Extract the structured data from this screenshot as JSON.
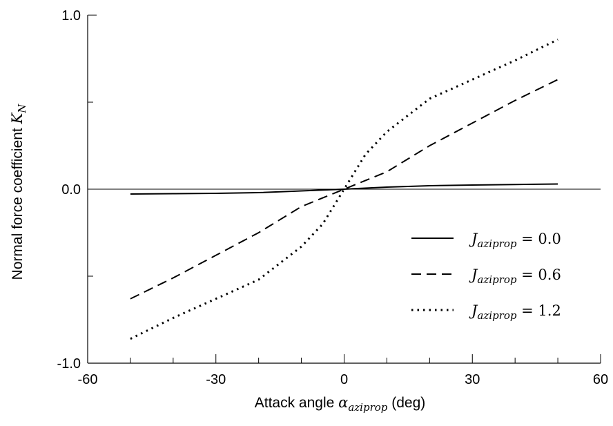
{
  "chart_data": {
    "type": "line",
    "xlabel": {
      "prefix": "Attack angle ",
      "symbol": "α",
      "subscript": "aziprop",
      "suffix": " (deg)"
    },
    "ylabel": {
      "prefix": "Normal force coefficient ",
      "symbol": "K",
      "subscript": "N"
    },
    "xlim": [
      -60,
      60
    ],
    "ylim": [
      -1.0,
      1.0
    ],
    "xticks": [
      -60,
      -30,
      0,
      30,
      60
    ],
    "xtick_labels": [
      "-60",
      "-30",
      "0",
      "30",
      "60"
    ],
    "yticks": [
      -1.0,
      0.0,
      1.0
    ],
    "ytick_labels": [
      "-1.0",
      "0.0",
      "1.0"
    ],
    "x_minor_step": 10,
    "y_minor_step": 0.5,
    "zero_line": true,
    "grid": false,
    "legend_position": "lower-right",
    "series": [
      {
        "name": "J_aziprop = 0.0",
        "legend_symbol": "J",
        "legend_subscript": "aziprop",
        "legend_value": " = 0.0",
        "style": "solid",
        "x": [
          -50,
          -40,
          -30,
          -20,
          -10,
          0,
          10,
          20,
          30,
          40,
          50
        ],
        "y": [
          -0.028,
          -0.026,
          -0.024,
          -0.02,
          -0.01,
          0.0,
          0.012,
          0.02,
          0.024,
          0.027,
          0.03
        ]
      },
      {
        "name": "J_aziprop = 0.6",
        "legend_symbol": "J",
        "legend_subscript": "aziprop",
        "legend_value": " = 0.6",
        "style": "dashed",
        "x": [
          -50,
          -40,
          -30,
          -20,
          -10,
          0,
          10,
          20,
          30,
          40,
          50
        ],
        "y": [
          -0.63,
          -0.51,
          -0.38,
          -0.25,
          -0.1,
          0.0,
          0.1,
          0.25,
          0.38,
          0.51,
          0.63
        ]
      },
      {
        "name": "J_aziprop = 1.2",
        "legend_symbol": "J",
        "legend_subscript": "aziprop",
        "legend_value": " = 1.2",
        "style": "dotted",
        "x": [
          -50,
          -40,
          -30,
          -20,
          -10,
          -5,
          0,
          5,
          10,
          20,
          30,
          40,
          50
        ],
        "y": [
          -0.86,
          -0.74,
          -0.63,
          -0.52,
          -0.33,
          -0.2,
          0.0,
          0.2,
          0.33,
          0.52,
          0.63,
          0.74,
          0.86
        ]
      }
    ]
  }
}
